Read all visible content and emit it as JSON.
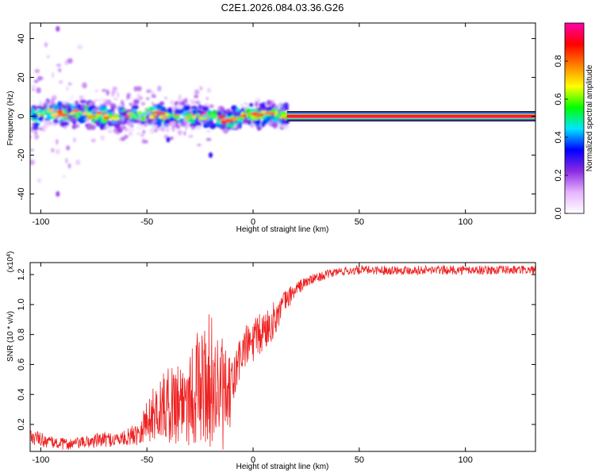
{
  "figure": {
    "title": "C2E1.2026.084.03.36.G26"
  },
  "chart_data": [
    {
      "type": "heatmap",
      "xlabel": "Height of straight line (km)",
      "ylabel": "Frequency (Hz)",
      "xlim": [
        -105,
        133
      ],
      "ylim": [
        -50,
        48
      ],
      "xticks": [
        "-100",
        "-50",
        "0",
        "50",
        "100"
      ],
      "yticks": [
        "-40",
        "-20",
        "0",
        "20",
        "40"
      ],
      "colorbar": {
        "label": "Normalized spectral amplitude",
        "range": [
          0,
          1
        ],
        "ticks": [
          "0.0",
          "0.2",
          "0.4",
          "0.6",
          "0.8"
        ],
        "colors": [
          "#ffffff",
          "#e6b3ff",
          "#8a2be2",
          "#0000ff",
          "#00e5ff",
          "#00ff00",
          "#ffff00",
          "#ff8000",
          "#ff0000",
          "#ff00aa"
        ]
      },
      "ridge": {
        "x": [
          -100,
          -90,
          -80,
          -70,
          -60,
          -50,
          -40,
          -30,
          -20,
          -12,
          -5,
          0,
          5,
          10,
          16,
          133
        ],
        "y": [
          2,
          2,
          1,
          0,
          0,
          1,
          0,
          0,
          0,
          -2,
          0,
          0,
          1,
          1,
          0,
          0
        ],
        "peak_amplitude": 1.0
      },
      "scatter_features": [
        {
          "x": -92,
          "y": 45,
          "amplitude": 0.2
        },
        {
          "x": -92,
          "y": -40,
          "amplitude": 0.2
        },
        {
          "x": -20,
          "y": -20,
          "amplitude": 0.3
        },
        {
          "x": -40,
          "y": -12,
          "amplitude": 0.3
        }
      ]
    },
    {
      "type": "line",
      "xlabel": "Height of straight line (km)",
      "ylabel": "SNR (10 * v/v)",
      "y_multiplier": "(x10^4)",
      "xlim": [
        -105,
        133
      ],
      "ylim": [
        0.02,
        1.28
      ],
      "xticks": [
        "-100",
        "-50",
        "0",
        "50",
        "100"
      ],
      "yticks": [
        "0.2",
        "0.4",
        "0.6",
        "0.8",
        "1.0",
        "1.2"
      ],
      "line_color": "#ee2222",
      "series": [
        {
          "x": [
            -105,
            -100,
            -95,
            -90,
            -85,
            -80,
            -75,
            -70,
            -65,
            -60,
            -55,
            -50,
            -45,
            -40,
            -35,
            -30,
            -25,
            -20,
            -15,
            -12,
            -10,
            -5,
            0,
            5,
            10,
            15,
            20,
            25,
            30,
            35,
            40,
            50,
            60,
            70,
            80,
            90,
            100,
            110,
            120,
            133
          ],
          "values": [
            0.12,
            0.1,
            0.08,
            0.07,
            0.07,
            0.08,
            0.09,
            0.1,
            0.1,
            0.11,
            0.14,
            0.22,
            0.3,
            0.33,
            0.36,
            0.4,
            0.45,
            0.5,
            0.4,
            0.35,
            0.45,
            0.7,
            0.75,
            0.82,
            0.9,
            1.02,
            1.1,
            1.15,
            1.18,
            1.2,
            1.22,
            1.23,
            1.23,
            1.23,
            1.23,
            1.23,
            1.23,
            1.23,
            1.23,
            1.23
          ],
          "noise": [
            0.05,
            0.05,
            0.04,
            0.04,
            0.04,
            0.04,
            0.05,
            0.05,
            0.05,
            0.05,
            0.08,
            0.15,
            0.2,
            0.25,
            0.3,
            0.35,
            0.4,
            0.45,
            0.4,
            0.3,
            0.2,
            0.15,
            0.15,
            0.15,
            0.12,
            0.08,
            0.05,
            0.04,
            0.03,
            0.03,
            0.03,
            0.03,
            0.03,
            0.03,
            0.03,
            0.03,
            0.03,
            0.03,
            0.03,
            0.03
          ]
        }
      ]
    }
  ]
}
